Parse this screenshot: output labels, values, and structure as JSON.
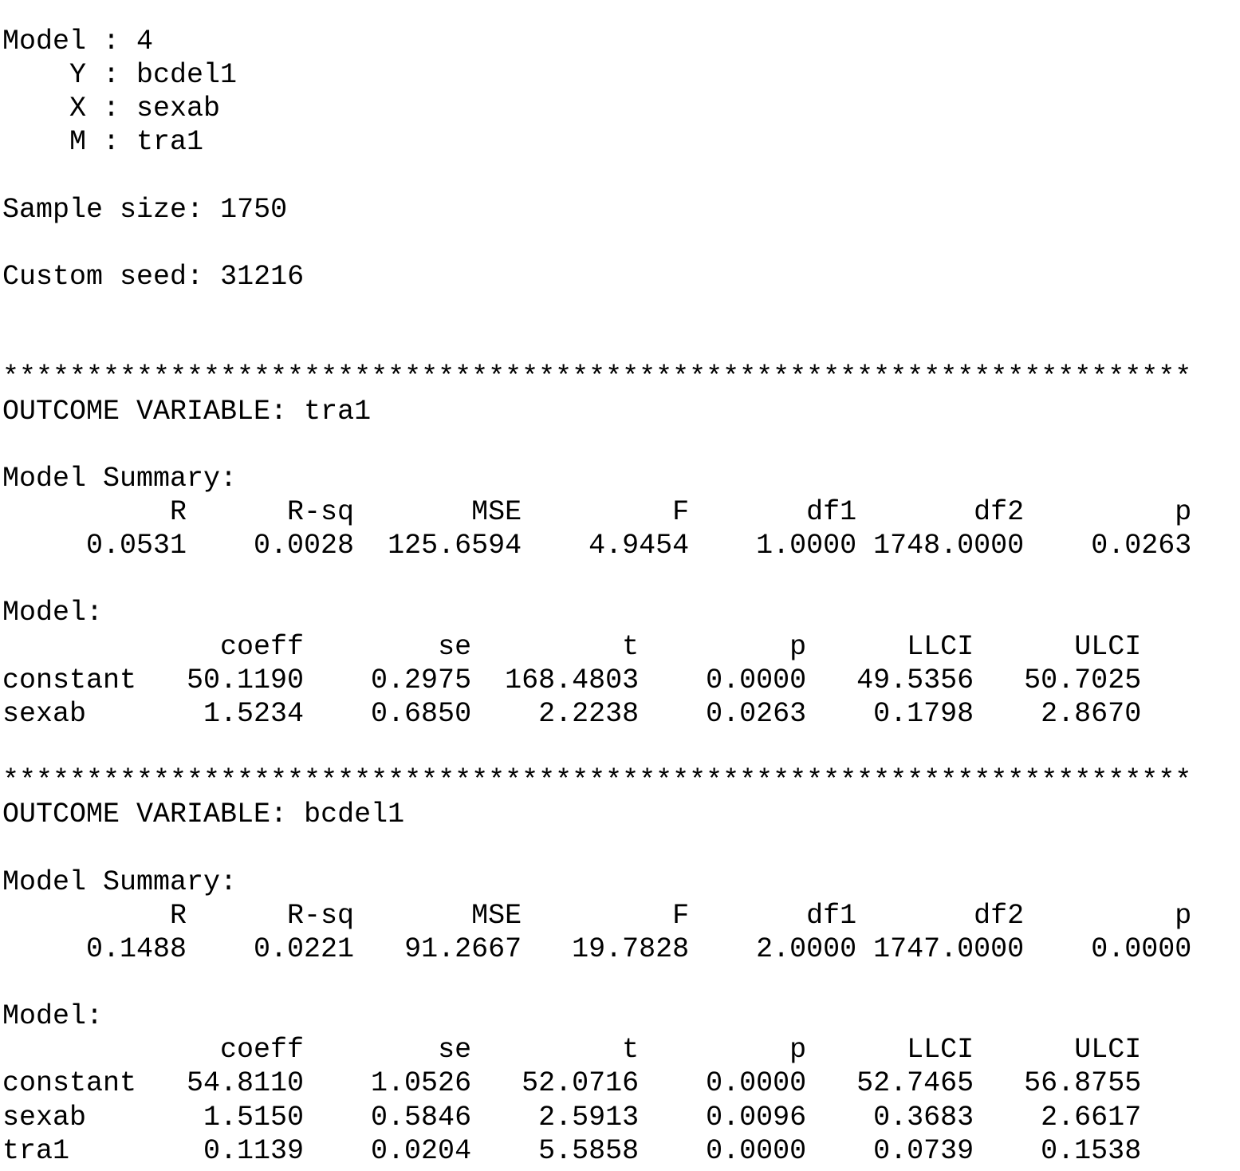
{
  "header": [
    {
      "label": "Model",
      "value": "4"
    },
    {
      "label": "Y",
      "value": "bcdel1"
    },
    {
      "label": "X",
      "value": "sexab"
    },
    {
      "label": "M",
      "value": "tra1"
    }
  ],
  "sample_size_label": "Sample size:",
  "sample_size": "1750",
  "seed_label": "Custom seed:",
  "seed": "31216",
  "separator": "***********************************************************************",
  "outcomes": [
    {
      "title_label": "OUTCOME VARIABLE:",
      "variable": "tra1",
      "summary_label": "Model Summary:",
      "summary_headers": [
        "R",
        "R-sq",
        "MSE",
        "F",
        "df1",
        "df2",
        "p"
      ],
      "summary_values": [
        "0.0531",
        "0.0028",
        "125.6594",
        "4.9454",
        "1.0000",
        "1748.0000",
        "0.0263"
      ],
      "model_label": "Model:",
      "model_headers": [
        "coeff",
        "se",
        "t",
        "p",
        "LLCI",
        "ULCI"
      ],
      "model_rows": [
        {
          "name": "constant",
          "values": [
            "50.1190",
            "0.2975",
            "168.4803",
            "0.0000",
            "49.5356",
            "50.7025"
          ]
        },
        {
          "name": "sexab",
          "values": [
            "1.5234",
            "0.6850",
            "2.2238",
            "0.0263",
            "0.1798",
            "2.8670"
          ]
        }
      ]
    },
    {
      "title_label": "OUTCOME VARIABLE:",
      "variable": "bcdel1",
      "summary_label": "Model Summary:",
      "summary_headers": [
        "R",
        "R-sq",
        "MSE",
        "F",
        "df1",
        "df2",
        "p"
      ],
      "summary_values": [
        "0.1488",
        "0.0221",
        "91.2667",
        "19.7828",
        "2.0000",
        "1747.0000",
        "0.0000"
      ],
      "model_label": "Model:",
      "model_headers": [
        "coeff",
        "se",
        "t",
        "p",
        "LLCI",
        "ULCI"
      ],
      "model_rows": [
        {
          "name": "constant",
          "values": [
            "54.8110",
            "1.0526",
            "52.0716",
            "0.0000",
            "52.7465",
            "56.8755"
          ]
        },
        {
          "name": "sexab",
          "values": [
            "1.5150",
            "0.5846",
            "2.5913",
            "0.0096",
            "0.3683",
            "2.6617"
          ]
        },
        {
          "name": "tra1",
          "values": [
            "0.1139",
            "0.0204",
            "5.5858",
            "0.0000",
            "0.0739",
            "0.1538"
          ]
        }
      ]
    }
  ]
}
